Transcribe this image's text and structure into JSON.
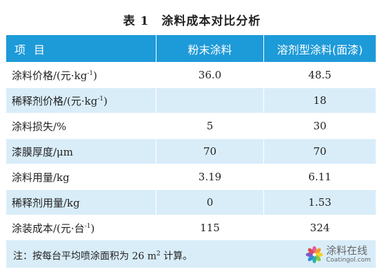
{
  "table_title": "表 1　涂料成本对比分析",
  "columns": [
    "项目",
    "粉末涂料",
    "溶剂型涂料(面漆)"
  ],
  "rows": [
    {
      "label_pre": "涂料价格/(元·kg",
      "label_sup": "-1",
      "label_post": ")",
      "powder": "36.0",
      "solvent": "48.5"
    },
    {
      "label_pre": "稀释剂价格/(元·kg",
      "label_sup": "-1",
      "label_post": ")",
      "powder": "",
      "solvent": "18"
    },
    {
      "label_pre": "涂料损失/%",
      "label_sup": "",
      "label_post": "",
      "powder": "5",
      "solvent": "30"
    },
    {
      "label_pre": "漆膜厚度/μm",
      "label_sup": "",
      "label_post": "",
      "powder": "70",
      "solvent": "70"
    },
    {
      "label_pre": "涂料用量/kg",
      "label_sup": "",
      "label_post": "",
      "powder": "3.19",
      "solvent": "6.11"
    },
    {
      "label_pre": "稀释剂用量/kg",
      "label_sup": "",
      "label_post": "",
      "powder": "0",
      "solvent": "1.53"
    },
    {
      "label_pre": "涂装成本/(元·台",
      "label_sup": "-1",
      "label_post": ")",
      "powder": "115",
      "solvent": "324"
    }
  ],
  "note": {
    "pre": "注：按每台平均喷涂面积为 26 m",
    "sup": "2",
    "post": " 计算。"
  },
  "watermark": {
    "cn": "涂料在线",
    "en": "Coatingol.com",
    "icon": "flower-logo-icon"
  }
}
